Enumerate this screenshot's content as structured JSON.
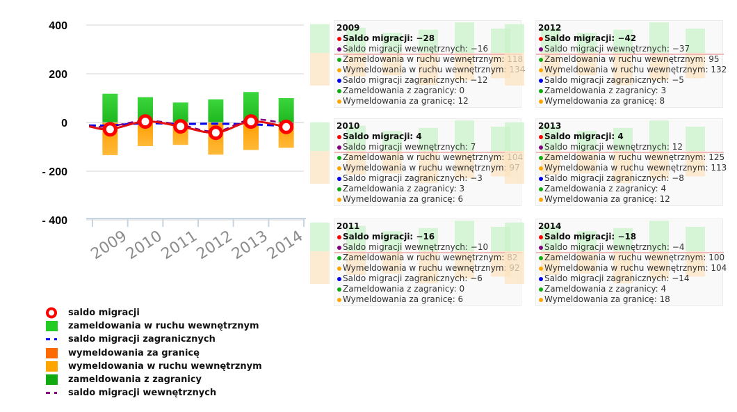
{
  "chart_data": {
    "type": "bar",
    "categories": [
      "2009",
      "2010",
      "2011",
      "2012",
      "2013",
      "2014"
    ],
    "ylim": [
      -440,
      440
    ],
    "yticks": [
      {
        "value": 400,
        "label": "400"
      },
      {
        "value": 200,
        "label": "200"
      },
      {
        "value": 0,
        "label": "0"
      },
      {
        "value": -200,
        "label": "- 200"
      },
      {
        "value": -400,
        "label": "- 400"
      }
    ],
    "series": [
      {
        "name": "saldo migracji",
        "key": "saldo",
        "kind": "line-marker",
        "color": "#ff0000",
        "values": [
          -28,
          4,
          -16,
          -42,
          4,
          -18
        ]
      },
      {
        "name": "zameldowania w ruchu wewnętrznym",
        "key": "zam_wew",
        "kind": "bar",
        "color": "#22cc22",
        "values": [
          118,
          104,
          82,
          95,
          125,
          100
        ]
      },
      {
        "name": "saldo migracji zagranicznych",
        "key": "saldo_zagr",
        "kind": "dashed-line",
        "color": "#0000ee",
        "values": [
          -12,
          -3,
          -6,
          -5,
          -8,
          -14
        ]
      },
      {
        "name": "wymeldowania za granicę",
        "key": "wym_zagr",
        "kind": "bar",
        "color": "#ff6a00",
        "values": [
          12,
          6,
          6,
          8,
          12,
          18
        ]
      },
      {
        "name": "wymeldowania w ruchu wewnętrznym",
        "key": "wym_wew",
        "kind": "bar",
        "color": "#ffa500",
        "values": [
          134,
          97,
          92,
          132,
          113,
          104
        ]
      },
      {
        "name": "zameldowania z zagranicy",
        "key": "zam_zagr",
        "kind": "bar",
        "color": "#11aa11",
        "values": [
          0,
          3,
          0,
          3,
          4,
          4
        ]
      },
      {
        "name": "saldo migracji wewnętrznych",
        "key": "saldo_wew",
        "kind": "dashed-line",
        "color": "#800080",
        "values": [
          -16,
          7,
          -10,
          -37,
          12,
          -4
        ]
      }
    ],
    "tooltips": [
      {
        "year": "2009",
        "rows": [
          {
            "color": "#ff0000",
            "text": "Saldo migracji: −28",
            "bold": true
          },
          {
            "color": "#800080",
            "text": "Saldo migracji wewnętrznych: −16"
          },
          {
            "color": "#11aa11",
            "text": "Zameldowania w ruchu wewnętrznym: 118"
          },
          {
            "color": "#ffa500",
            "text": "Wymeldowania w ruchu wewnętrznym: 134"
          },
          {
            "color": "#0000ee",
            "text": "Saldo migracji zagranicznych: −12"
          },
          {
            "color": "#11aa11",
            "text": "Zameldowania z zagranicy: 0"
          },
          {
            "color": "#ffa500",
            "text": "Wymeldowania za granicę: 12"
          }
        ]
      },
      {
        "year": "2012",
        "rows": [
          {
            "color": "#ff0000",
            "text": "Saldo migracji: −42",
            "bold": true
          },
          {
            "color": "#800080",
            "text": "Saldo migracji wewnętrznych: −37"
          },
          {
            "color": "#11aa11",
            "text": "Zameldowania w ruchu wewnętrznym: 95"
          },
          {
            "color": "#ffa500",
            "text": "Wymeldowania w ruchu wewnętrznym: 132"
          },
          {
            "color": "#0000ee",
            "text": "Saldo migracji zagranicznych: −5"
          },
          {
            "color": "#11aa11",
            "text": "Zameldowania z zagranicy: 3"
          },
          {
            "color": "#ffa500",
            "text": "Wymeldowania za granicę: 8"
          }
        ]
      },
      {
        "year": "2010",
        "rows": [
          {
            "color": "#ff0000",
            "text": "Saldo migracji: 4",
            "bold": true
          },
          {
            "color": "#800080",
            "text": "Saldo migracji wewnętrznych: 7"
          },
          {
            "color": "#11aa11",
            "text": "Zameldowania w ruchu wewnętrznym: 104"
          },
          {
            "color": "#ffa500",
            "text": "Wymeldowania w ruchu wewnętrznym: 97"
          },
          {
            "color": "#0000ee",
            "text": "Saldo migracji zagranicznych: −3"
          },
          {
            "color": "#11aa11",
            "text": "Zameldowania z zagranicy: 3"
          },
          {
            "color": "#ffa500",
            "text": "Wymeldowania za granicę: 6"
          }
        ]
      },
      {
        "year": "2013",
        "rows": [
          {
            "color": "#ff0000",
            "text": "Saldo migracji: 4",
            "bold": true
          },
          {
            "color": "#800080",
            "text": "Saldo migracji wewnętrznych: 12"
          },
          {
            "color": "#11aa11",
            "text": "Zameldowania w ruchu wewnętrznym: 125"
          },
          {
            "color": "#ffa500",
            "text": "Wymeldowania w ruchu wewnętrznym: 113"
          },
          {
            "color": "#0000ee",
            "text": "Saldo migracji zagranicznych: −8"
          },
          {
            "color": "#11aa11",
            "text": "Zameldowania z zagranicy: 4"
          },
          {
            "color": "#ffa500",
            "text": "Wymeldowania za granicę: 12"
          }
        ]
      },
      {
        "year": "2011",
        "rows": [
          {
            "color": "#ff0000",
            "text": "Saldo migracji: −16",
            "bold": true
          },
          {
            "color": "#800080",
            "text": "Saldo migracji wewnętrznych: −10"
          },
          {
            "color": "#11aa11",
            "text": "Zameldowania w ruchu wewnętrznym: 82"
          },
          {
            "color": "#ffa500",
            "text": "Wymeldowania w ruchu wewnętrznym: 92"
          },
          {
            "color": "#0000ee",
            "text": "Saldo migracji zagranicznych: −6"
          },
          {
            "color": "#11aa11",
            "text": "Zameldowania z zagranicy: 0"
          },
          {
            "color": "#ffa500",
            "text": "Wymeldowania za granicę: 6"
          }
        ]
      },
      {
        "year": "2014",
        "rows": [
          {
            "color": "#ff0000",
            "text": "Saldo migracji: −18",
            "bold": true
          },
          {
            "color": "#800080",
            "text": "Saldo migracji wewnętrznych: −4"
          },
          {
            "color": "#11aa11",
            "text": "Zameldowania w ruchu wewnętrznym: 100"
          },
          {
            "color": "#ffa500",
            "text": "Wymeldowania w ruchu wewnętrznym: 104"
          },
          {
            "color": "#0000ee",
            "text": "Saldo migracji zagranicznych: −14"
          },
          {
            "color": "#11aa11",
            "text": "Zameldowania z zagranicy: 4"
          },
          {
            "color": "#ffa500",
            "text": "Wymeldowania za granicę: 18"
          }
        ]
      }
    ]
  }
}
